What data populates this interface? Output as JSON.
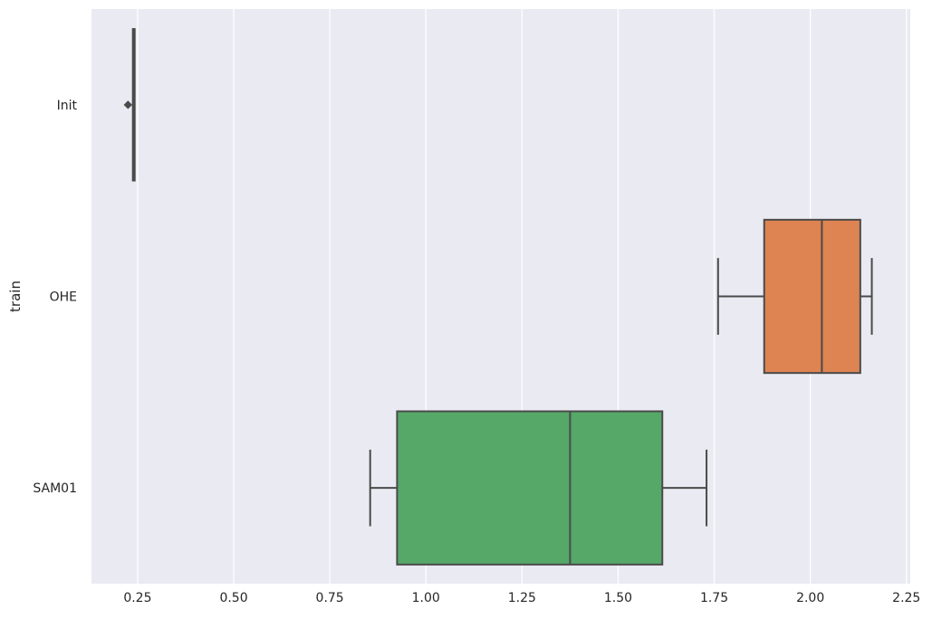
{
  "chart_data": {
    "type": "box",
    "orientation": "horizontal",
    "title": "",
    "xlabel": "",
    "ylabel": "train",
    "xlim": [
      0.13,
      2.26
    ],
    "xticks": [
      0.25,
      0.5,
      0.75,
      1.0,
      1.25,
      1.5,
      1.75,
      2.0,
      2.25
    ],
    "xtick_labels": [
      "0.25",
      "0.50",
      "0.75",
      "1.00",
      "1.25",
      "1.50",
      "1.75",
      "2.00",
      "2.25"
    ],
    "grid": true,
    "categories": [
      "Init",
      "OHE",
      "SAM01"
    ],
    "boxes": [
      {
        "category": "Init",
        "whisker_low": 0.24,
        "q1": 0.24,
        "median": 0.24,
        "q3": 0.24,
        "whisker_high": 0.24,
        "outliers": [
          0.225
        ],
        "color": "#4c72b0"
      },
      {
        "category": "OHE",
        "whisker_low": 1.76,
        "q1": 1.88,
        "median": 2.03,
        "q3": 2.13,
        "whisker_high": 2.16,
        "outliers": [],
        "color": "#dd8452"
      },
      {
        "category": "SAM01",
        "whisker_low": 0.855,
        "q1": 0.925,
        "median": 1.375,
        "q3": 1.615,
        "whisker_high": 1.73,
        "outliers": [],
        "color": "#55a868"
      }
    ]
  },
  "colors": {
    "background": "#eaeaf2",
    "grid": "#ffffff",
    "line": "#4a4a4a"
  }
}
